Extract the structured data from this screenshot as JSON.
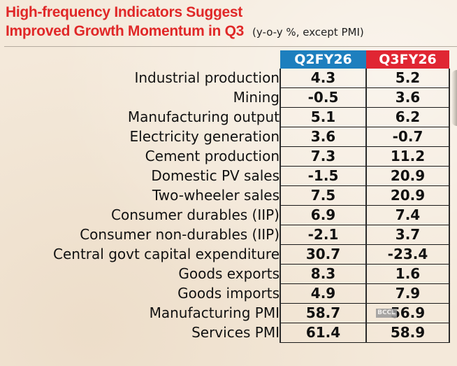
{
  "title": {
    "line1": "High-frequency Indicators Suggest",
    "line2": "Improved Growth Momentum in Q3",
    "subtitle": "(y-o-y %, except PMI)"
  },
  "table": {
    "columns": [
      "Q2FY26",
      "Q3FY26"
    ],
    "rows": [
      {
        "label": "Industrial production",
        "q2": "4.3",
        "q3": "5.2"
      },
      {
        "label": "Mining",
        "q2": "-0.5",
        "q3": "3.6"
      },
      {
        "label": "Manufacturing output",
        "q2": "5.1",
        "q3": "6.2"
      },
      {
        "label": "Electricity generation",
        "q2": "3.6",
        "q3": "-0.7"
      },
      {
        "label": "Cement production",
        "q2": "7.3",
        "q3": "11.2"
      },
      {
        "label": "Domestic PV sales",
        "q2": "-1.5",
        "q3": "20.9"
      },
      {
        "label": "Two-wheeler sales",
        "q2": "7.5",
        "q3": "20.9"
      },
      {
        "label": "Consumer durables (IIP)",
        "q2": "6.9",
        "q3": "7.4"
      },
      {
        "label": "Consumer non-durables (IIP)",
        "q2": "-2.1",
        "q3": "3.7"
      },
      {
        "label": "Central govt capital expenditure",
        "q2": "30.7",
        "q3": "-23.4"
      },
      {
        "label": "Goods exports",
        "q2": "8.3",
        "q3": "1.6"
      },
      {
        "label": "Goods imports",
        "q2": "4.9",
        "q3": "7.9"
      },
      {
        "label": "Manufacturing PMI",
        "q2": "58.7",
        "q3": "56.9"
      },
      {
        "label": "Services PMI",
        "q2": "61.4",
        "q3": "58.9"
      }
    ]
  },
  "watermark": "BCCL",
  "colors": {
    "title": "#e02828",
    "q2_header": "#1d7fbe",
    "q3_header": "#e02633"
  }
}
